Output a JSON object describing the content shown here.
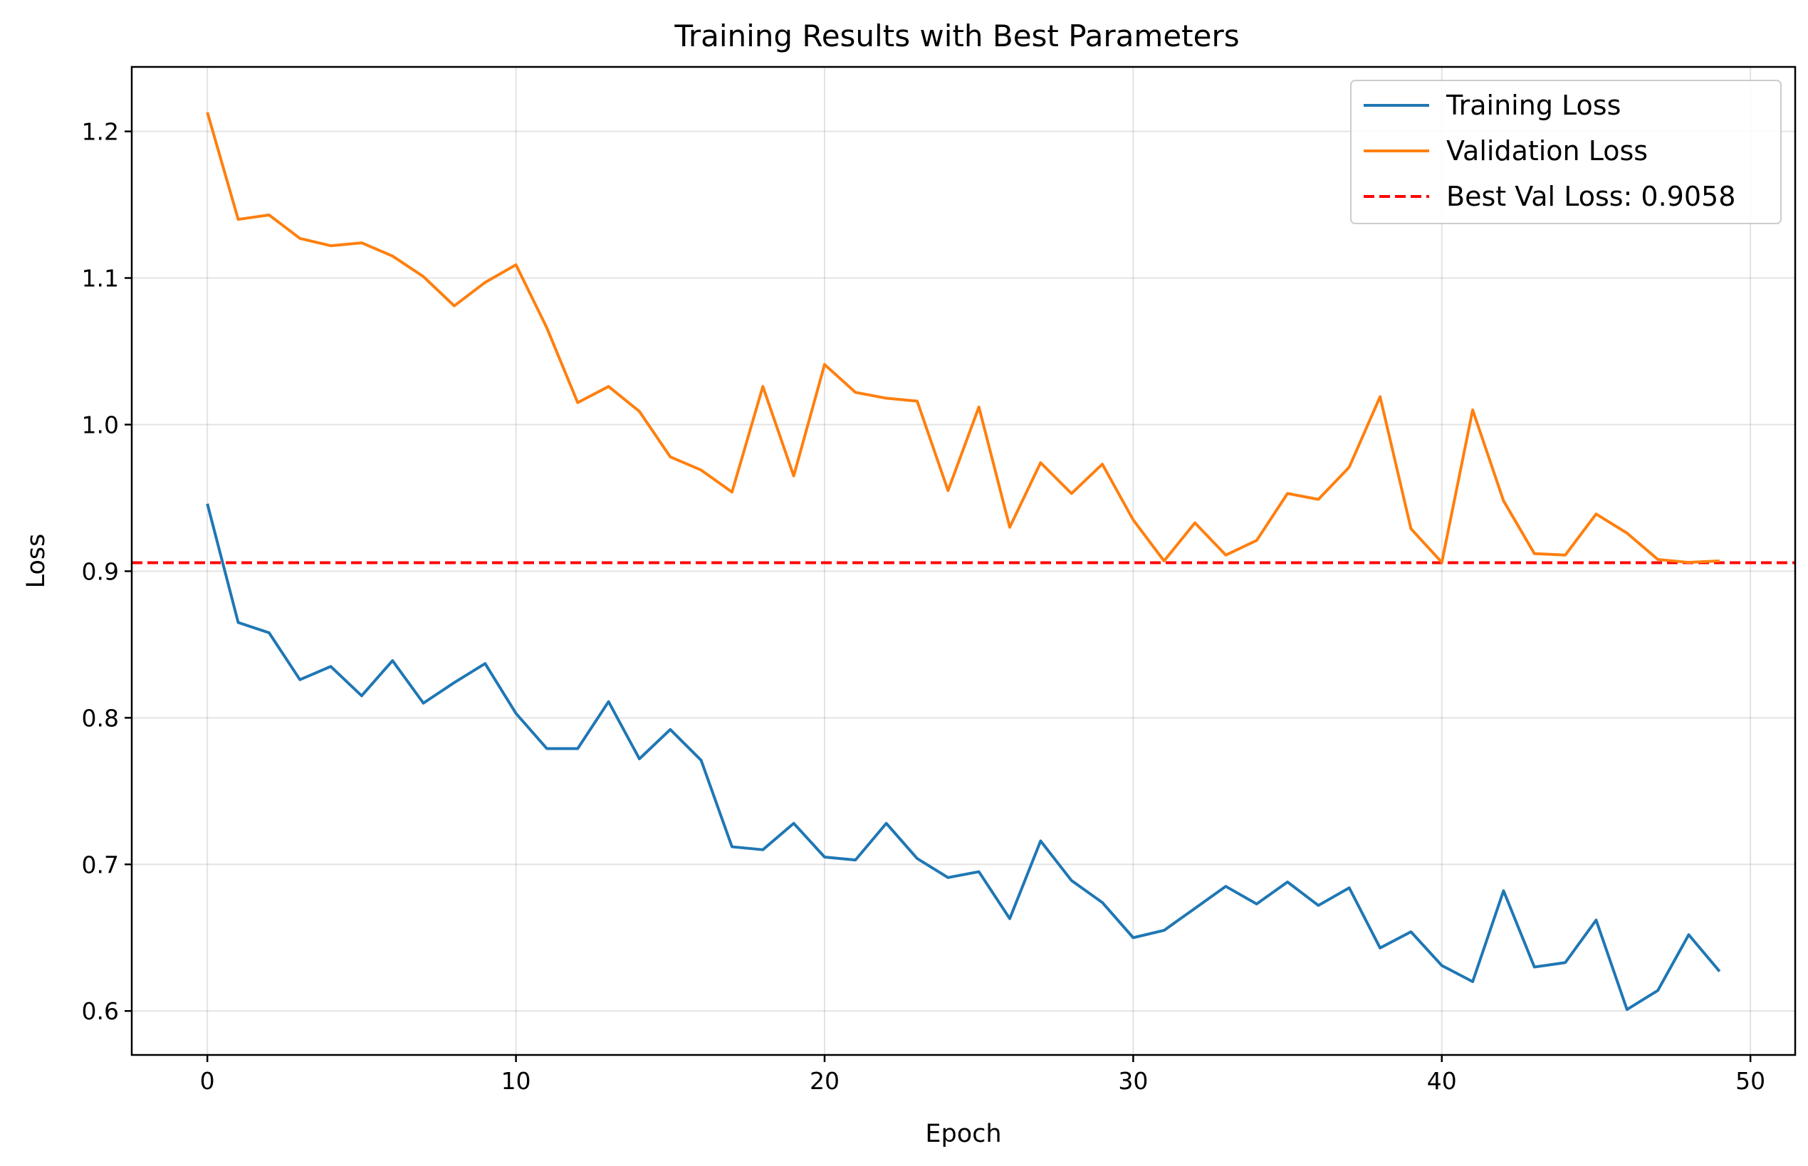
{
  "chart_data": {
    "type": "line",
    "title": "Training Results with Best Parameters",
    "xlabel": "Epoch",
    "ylabel": "Loss",
    "xlim": [
      -2.45,
      51.45
    ],
    "ylim": [
      0.57,
      1.244
    ],
    "x_ticks": [
      0,
      10,
      20,
      30,
      40,
      50
    ],
    "y_ticks": [
      0.6,
      0.7,
      0.8,
      0.9,
      1.0,
      1.1,
      1.2
    ],
    "x_tick_labels": [
      "0",
      "10",
      "20",
      "30",
      "40",
      "50"
    ],
    "y_tick_labels": [
      "0.6",
      "0.7",
      "0.8",
      "0.9",
      "1.0",
      "1.1",
      "1.2"
    ],
    "grid": true,
    "legend_position": "top-right",
    "x": [
      0,
      1,
      2,
      3,
      4,
      5,
      6,
      7,
      8,
      9,
      10,
      11,
      12,
      13,
      14,
      15,
      16,
      17,
      18,
      19,
      20,
      21,
      22,
      23,
      24,
      25,
      26,
      27,
      28,
      29,
      30,
      31,
      32,
      33,
      34,
      35,
      36,
      37,
      38,
      39,
      40,
      41,
      42,
      43,
      44,
      45,
      46,
      47,
      48,
      49
    ],
    "series": [
      {
        "name": "Training Loss",
        "color": "#1f77b4",
        "style": "solid",
        "values": [
          0.946,
          0.865,
          0.858,
          0.826,
          0.835,
          0.815,
          0.839,
          0.81,
          0.824,
          0.837,
          0.803,
          0.779,
          0.779,
          0.811,
          0.772,
          0.792,
          0.771,
          0.712,
          0.71,
          0.728,
          0.705,
          0.703,
          0.728,
          0.704,
          0.691,
          0.695,
          0.663,
          0.716,
          0.689,
          0.674,
          0.65,
          0.655,
          0.67,
          0.685,
          0.673,
          0.688,
          0.672,
          0.684,
          0.643,
          0.654,
          0.631,
          0.62,
          0.682,
          0.63,
          0.633,
          0.662,
          0.601,
          0.614,
          0.652,
          0.627
        ]
      },
      {
        "name": "Validation Loss",
        "color": "#ff7f0e",
        "style": "solid",
        "values": [
          1.213,
          1.14,
          1.143,
          1.127,
          1.122,
          1.124,
          1.115,
          1.101,
          1.081,
          1.097,
          1.109,
          1.066,
          1.015,
          1.026,
          1.009,
          0.978,
          0.969,
          0.954,
          1.026,
          0.965,
          1.041,
          1.022,
          1.018,
          1.016,
          0.955,
          1.012,
          0.93,
          0.974,
          0.953,
          0.973,
          0.935,
          0.907,
          0.933,
          0.911,
          0.921,
          0.953,
          0.949,
          0.971,
          1.019,
          0.929,
          0.906,
          1.01,
          0.948,
          0.912,
          0.911,
          0.939,
          0.926,
          0.908,
          0.906,
          0.907
        ]
      }
    ],
    "hlines": [
      {
        "name": "Best Val Loss: 0.9058",
        "y": 0.9058,
        "color": "#ff0000",
        "style": "dashed"
      }
    ]
  }
}
